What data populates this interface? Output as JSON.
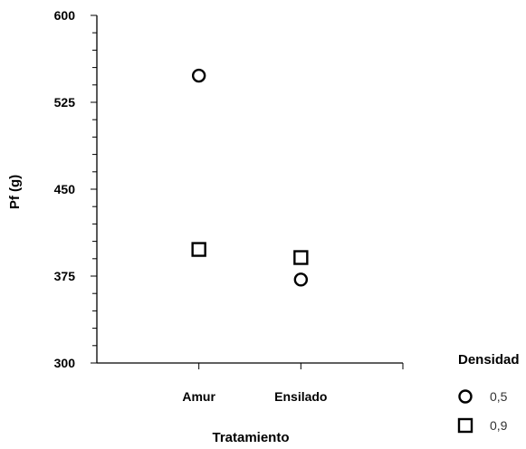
{
  "chart_data": {
    "type": "scatter",
    "title": "",
    "xlabel": "Tratamiento",
    "ylabel": "Pf (g)",
    "categories": [
      "Amur",
      "Ensilado"
    ],
    "ylim": [
      300,
      600
    ],
    "yticks": [
      300,
      375,
      450,
      525,
      600
    ],
    "grid": false,
    "legend": {
      "title": "Densidad",
      "position": "right-bottom"
    },
    "series": [
      {
        "name": "0,5",
        "marker": "circle",
        "values": [
          548,
          372
        ]
      },
      {
        "name": "0,9",
        "marker": "square",
        "values": [
          398,
          391
        ]
      }
    ]
  }
}
